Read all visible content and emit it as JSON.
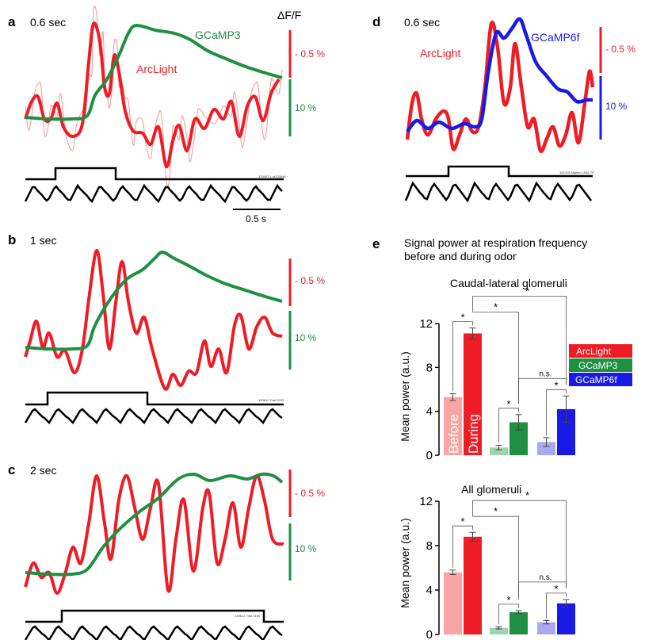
{
  "colors": {
    "arclight": "#ee1c25",
    "arclight_light": "#f7a5a5",
    "arclight_raw": "#f27a7a",
    "gcamp3": "#1f8f42",
    "gcamp3_light": "#9fd3ad",
    "gcamp6f": "#1a1ae6",
    "gcamp6f_light": "#a9a9f0",
    "stim": "#000000"
  },
  "panels": {
    "a": {
      "letter": "a",
      "duration": "0.6 sec",
      "title_right": "ΔF/F",
      "label_arclight": "ArcLight",
      "label_gcamp": "GCaMP3",
      "scale_red": "- 0.5 %",
      "scale_green": "10 %",
      "scalebar_time": "0.5 s",
      "trace_id": "170407 1 m203046"
    },
    "b": {
      "letter": "b",
      "duration": "1 sec",
      "scale_red": "- 0.5 %",
      "scale_green": "10 %",
      "trace_id": "130612 Trial 0203"
    },
    "c": {
      "letter": "c",
      "duration": "2 sec",
      "scale_red": "- 0.5 %",
      "scale_green": "10 %",
      "trace_id": "130612 Trial 0169"
    },
    "d": {
      "letter": "d",
      "duration": "0.6 sec",
      "label_arclight": "ArcLight",
      "label_gcamp": "GCaMP6f",
      "scale_red": "- 0.5 %",
      "scale_blue": "10 %",
      "trace_id": "151019 Aligned 1546 79"
    },
    "e": {
      "letter": "e",
      "title_line1": "Signal power at respiration frequency",
      "title_line2": "before and during odor"
    }
  },
  "legend": [
    "ArcLight",
    "GCaMP3",
    "GCaMP6f"
  ],
  "bar_labels": {
    "before": "Before",
    "during": "During"
  },
  "significance": {
    "star": "*",
    "ns": "n.s."
  },
  "chart_data": [
    {
      "type": "bar",
      "title": "Caudal-lateral glomeruli",
      "ylabel": "Mean power (a.u.)",
      "ylim": [
        0,
        12
      ],
      "yticks": [
        0,
        4,
        8,
        12
      ],
      "categories": [
        "ArcLight",
        "GCaMP3",
        "GCaMP6f"
      ],
      "series": [
        {
          "name": "Before",
          "values": [
            5.3,
            0.7,
            1.2
          ],
          "errors": [
            0.3,
            0.2,
            0.4
          ]
        },
        {
          "name": "During",
          "values": [
            11.1,
            3.0,
            4.2
          ],
          "errors": [
            0.5,
            0.7,
            1.2
          ]
        }
      ]
    },
    {
      "type": "bar",
      "title": "All glomeruli",
      "ylabel": "Mean power (a.u.)",
      "ylim": [
        0,
        12
      ],
      "yticks": [
        0,
        4,
        8,
        12
      ],
      "categories": [
        "ArcLight",
        "GCaMP3",
        "GCaMP6f"
      ],
      "series": [
        {
          "name": "Before",
          "values": [
            5.6,
            0.6,
            1.1
          ],
          "errors": [
            0.2,
            0.1,
            0.15
          ]
        },
        {
          "name": "During",
          "values": [
            8.8,
            2.0,
            2.8
          ],
          "errors": [
            0.4,
            0.15,
            0.35
          ]
        }
      ]
    }
  ]
}
